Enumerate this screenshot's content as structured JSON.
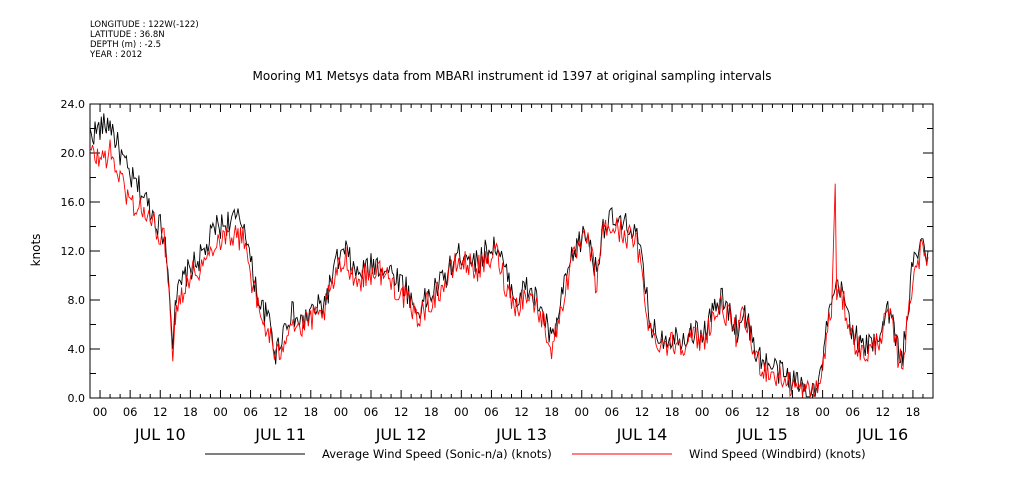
{
  "metadata": {
    "longitude": "LONGITUDE : 122W(-122)",
    "latitude": "LATITUDE : 36.8N",
    "depth": "DEPTH (m) : -2.5",
    "year": "YEAR : 2012"
  },
  "chart_data": {
    "type": "line",
    "title": "Mooring M1 Metsys data from MBARI instrument id 1397 at original sampling intervals",
    "ylabel": "knots",
    "xlabel": "",
    "ylim": [
      0,
      24
    ],
    "yticks": [
      "0.0",
      "4.0",
      "8.0",
      "12.0",
      "16.0",
      "20.0",
      "24.0"
    ],
    "x_hour_ticks": [
      "00",
      "06",
      "12",
      "18",
      "00",
      "06",
      "12",
      "18",
      "00",
      "06",
      "12",
      "18",
      "00",
      "06",
      "12",
      "18",
      "00",
      "06",
      "12",
      "18",
      "00",
      "06",
      "12",
      "18",
      "00",
      "06",
      "12",
      "18"
    ],
    "day_labels": [
      "JUL 10",
      "JUL 11",
      "JUL 12",
      "JUL 13",
      "JUL 14",
      "JUL 15",
      "JUL 16"
    ],
    "x_unit": "hours since JUL 10 00:00",
    "xlim": [
      -2,
      166
    ],
    "series": [
      {
        "name": "Average Wind Speed (Sonic-n/a) (knots)",
        "color": "#000000",
        "points": [
          [
            -2,
            21.5
          ],
          [
            0,
            22
          ],
          [
            2,
            22.5
          ],
          [
            4,
            20
          ],
          [
            6,
            18
          ],
          [
            8,
            17
          ],
          [
            10,
            15.5
          ],
          [
            12,
            14
          ],
          [
            13,
            13
          ],
          [
            14,
            9
          ],
          [
            14.5,
            4
          ],
          [
            15,
            8
          ],
          [
            17,
            10
          ],
          [
            19,
            11
          ],
          [
            21,
            12
          ],
          [
            23,
            14
          ],
          [
            24,
            14
          ],
          [
            26,
            14.5
          ],
          [
            28,
            14.5
          ],
          [
            29,
            14
          ],
          [
            30,
            11
          ],
          [
            32,
            7.5
          ],
          [
            34,
            6
          ],
          [
            35,
            3.5
          ],
          [
            36,
            5
          ],
          [
            38,
            7
          ],
          [
            40,
            6
          ],
          [
            42,
            7
          ],
          [
            44,
            7.5
          ],
          [
            45,
            8
          ],
          [
            47,
            11
          ],
          [
            49,
            12
          ],
          [
            51,
            10
          ],
          [
            53,
            10.5
          ],
          [
            55,
            11
          ],
          [
            57,
            10.5
          ],
          [
            59,
            10
          ],
          [
            61,
            9
          ],
          [
            63,
            7
          ],
          [
            65,
            8
          ],
          [
            67,
            9
          ],
          [
            69,
            10
          ],
          [
            71,
            11.5
          ],
          [
            73,
            12
          ],
          [
            75,
            11
          ],
          [
            77,
            12
          ],
          [
            79,
            12.5
          ],
          [
            81,
            10
          ],
          [
            83,
            8
          ],
          [
            85,
            9
          ],
          [
            87,
            8
          ],
          [
            89,
            6
          ],
          [
            90,
            4.5
          ],
          [
            91,
            6
          ],
          [
            93,
            10
          ],
          [
            95,
            12.5
          ],
          [
            97,
            13.5
          ],
          [
            98,
            12
          ],
          [
            99,
            10
          ],
          [
            100,
            14
          ],
          [
            102,
            14.5
          ],
          [
            104,
            14
          ],
          [
            106,
            14
          ],
          [
            107,
            13
          ],
          [
            108,
            11
          ],
          [
            109,
            8
          ],
          [
            110,
            5.5
          ],
          [
            112,
            5
          ],
          [
            114,
            5
          ],
          [
            116,
            5
          ],
          [
            118,
            5.5
          ],
          [
            120,
            5
          ],
          [
            122,
            7
          ],
          [
            124,
            8
          ],
          [
            126,
            6.5
          ],
          [
            127,
            5.5
          ],
          [
            128,
            7
          ],
          [
            129,
            6.5
          ],
          [
            130,
            4.5
          ],
          [
            132,
            3
          ],
          [
            134,
            2.5
          ],
          [
            136,
            2
          ],
          [
            138,
            1.5
          ],
          [
            140,
            1
          ],
          [
            141,
            0.5
          ],
          [
            142,
            1
          ],
          [
            143,
            0.5
          ],
          [
            144,
            3
          ],
          [
            145,
            6
          ],
          [
            146,
            8
          ],
          [
            147,
            9
          ],
          [
            148,
            8.5
          ],
          [
            150,
            5.5
          ],
          [
            152,
            4
          ],
          [
            154,
            4.5
          ],
          [
            156,
            6
          ],
          [
            157,
            7.5
          ],
          [
            158,
            6
          ],
          [
            159,
            4
          ],
          [
            160,
            3.5
          ],
          [
            161,
            7
          ],
          [
            162,
            11
          ],
          [
            163,
            12
          ],
          [
            164,
            12.5
          ],
          [
            165,
            12
          ]
        ]
      },
      {
        "name": "Wind Speed (Windbird) (knots)",
        "color": "#ff0000",
        "points": [
          [
            -2,
            20
          ],
          [
            0,
            19.5
          ],
          [
            2,
            20
          ],
          [
            4,
            18
          ],
          [
            6,
            16
          ],
          [
            8,
            15.5
          ],
          [
            10,
            14.5
          ],
          [
            12,
            13.5
          ],
          [
            13,
            12.5
          ],
          [
            14,
            8
          ],
          [
            14.5,
            3
          ],
          [
            15,
            7
          ],
          [
            17,
            9.5
          ],
          [
            19,
            10.5
          ],
          [
            21,
            11
          ],
          [
            23,
            13
          ],
          [
            24,
            13
          ],
          [
            26,
            13.5
          ],
          [
            28,
            13
          ],
          [
            29,
            13
          ],
          [
            30,
            10
          ],
          [
            32,
            6.5
          ],
          [
            34,
            5
          ],
          [
            35,
            3
          ],
          [
            36,
            4
          ],
          [
            38,
            6.5
          ],
          [
            40,
            5.5
          ],
          [
            42,
            6.5
          ],
          [
            44,
            6.5
          ],
          [
            45,
            7.5
          ],
          [
            47,
            10
          ],
          [
            49,
            11.5
          ],
          [
            51,
            9.5
          ],
          [
            53,
            10
          ],
          [
            55,
            10.5
          ],
          [
            57,
            10
          ],
          [
            59,
            9
          ],
          [
            61,
            8
          ],
          [
            63,
            6.5
          ],
          [
            65,
            7.5
          ],
          [
            67,
            8.5
          ],
          [
            69,
            9.5
          ],
          [
            71,
            11
          ],
          [
            73,
            11
          ],
          [
            75,
            10.5
          ],
          [
            77,
            11
          ],
          [
            79,
            12
          ],
          [
            81,
            9
          ],
          [
            83,
            7.5
          ],
          [
            85,
            8.5
          ],
          [
            87,
            7.5
          ],
          [
            89,
            5.5
          ],
          [
            90,
            4
          ],
          [
            91,
            5.5
          ],
          [
            93,
            9.5
          ],
          [
            95,
            12
          ],
          [
            97,
            13
          ],
          [
            98,
            11.5
          ],
          [
            99,
            9
          ],
          [
            100,
            13.5
          ],
          [
            102,
            14
          ],
          [
            104,
            13.5
          ],
          [
            106,
            13
          ],
          [
            107,
            12.5
          ],
          [
            108,
            10
          ],
          [
            109,
            7
          ],
          [
            110,
            5
          ],
          [
            112,
            4.5
          ],
          [
            114,
            4.5
          ],
          [
            116,
            4.5
          ],
          [
            118,
            5
          ],
          [
            120,
            4.5
          ],
          [
            122,
            6.5
          ],
          [
            124,
            7.5
          ],
          [
            126,
            6
          ],
          [
            127,
            5
          ],
          [
            128,
            6.5
          ],
          [
            129,
            6
          ],
          [
            130,
            4
          ],
          [
            132,
            2.5
          ],
          [
            134,
            2
          ],
          [
            136,
            1.5
          ],
          [
            138,
            1
          ],
          [
            140,
            0.5
          ],
          [
            141,
            0.5
          ],
          [
            142,
            0.5
          ],
          [
            143,
            0.5
          ],
          [
            144,
            2.5
          ],
          [
            145,
            5.5
          ],
          [
            146,
            8
          ],
          [
            146.5,
            17.5
          ],
          [
            146.8,
            8
          ],
          [
            147,
            8.5
          ],
          [
            148,
            8
          ],
          [
            150,
            5
          ],
          [
            152,
            3.5
          ],
          [
            154,
            4
          ],
          [
            156,
            5.5
          ],
          [
            157,
            7
          ],
          [
            158,
            5.5
          ],
          [
            159,
            3.5
          ],
          [
            160,
            3
          ],
          [
            161,
            6.5
          ],
          [
            162,
            10
          ],
          [
            163,
            11.5
          ],
          [
            164,
            12
          ],
          [
            165,
            11.5
          ]
        ]
      }
    ]
  }
}
